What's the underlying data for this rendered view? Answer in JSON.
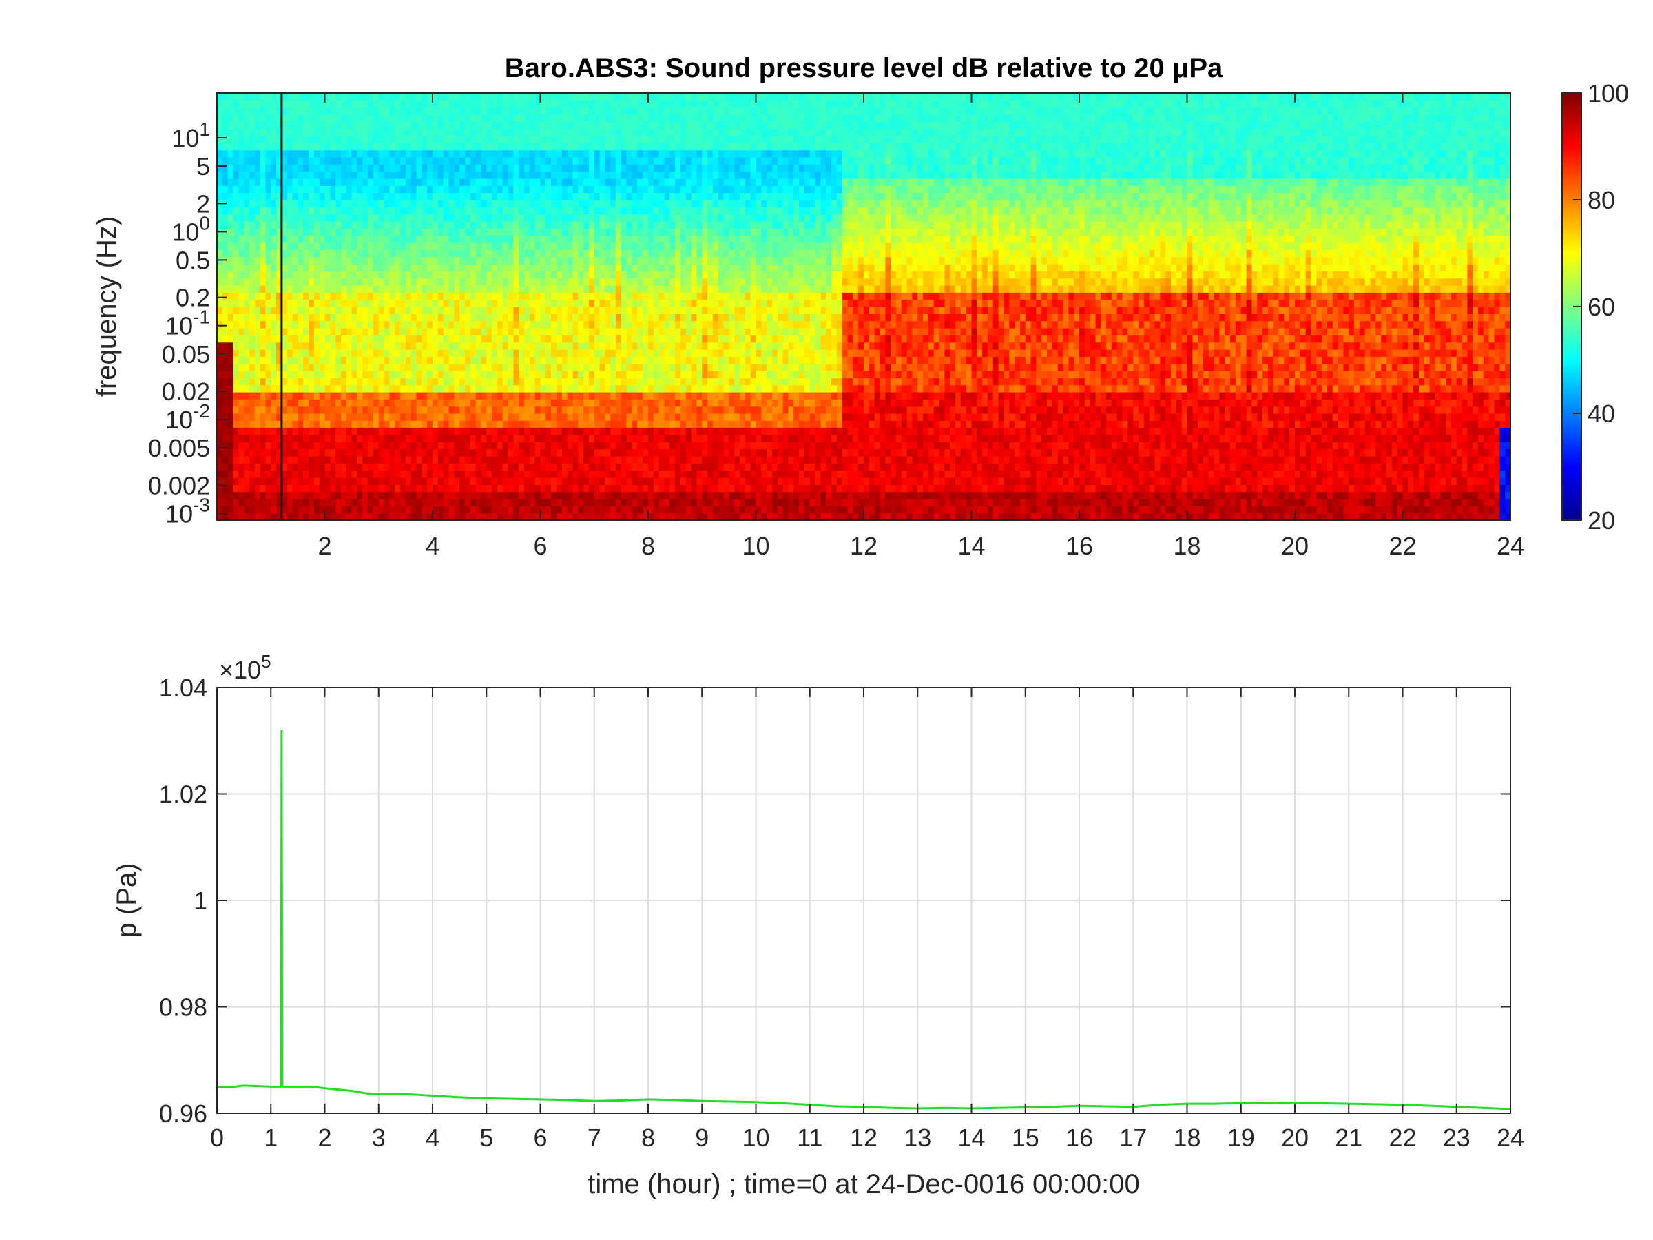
{
  "chart_data": [
    {
      "type": "heatmap",
      "title": "Baro.ABS3: Sound pressure level dB relative to 20 μPa",
      "xlabel": "",
      "ylabel": "frequency (Hz)",
      "xlim": [
        0,
        24
      ],
      "ylim": [
        0.00085,
        30
      ],
      "yscale": "log",
      "x_ticks": [
        2,
        4,
        6,
        8,
        10,
        12,
        14,
        16,
        18,
        20,
        22,
        24
      ],
      "x_tick_labels": [
        "2",
        "4",
        "6",
        "8",
        "10",
        "12",
        "14",
        "16",
        "18",
        "20",
        "22",
        "24"
      ],
      "y_ticks": [
        {
          "value": 0.001,
          "base": "10",
          "exp": "-3"
        },
        {
          "value": 0.002,
          "label": "0.002"
        },
        {
          "value": 0.005,
          "label": "0.005"
        },
        {
          "value": 0.01,
          "base": "10",
          "exp": "-2"
        },
        {
          "value": 0.02,
          "label": "0.02"
        },
        {
          "value": 0.05,
          "label": "0.05"
        },
        {
          "value": 0.1,
          "base": "10",
          "exp": "-1"
        },
        {
          "value": 0.2,
          "label": "0.2"
        },
        {
          "value": 0.5,
          "label": "0.5"
        },
        {
          "value": 1,
          "base": "10",
          "exp": "0"
        },
        {
          "value": 2,
          "label": "2"
        },
        {
          "value": 5,
          "label": "5"
        },
        {
          "value": 10,
          "base": "10",
          "exp": "1"
        }
      ],
      "colormap": "jet",
      "color_range": [
        20,
        100
      ],
      "colorbar_ticks": [
        "20",
        "40",
        "60",
        "80",
        "100"
      ],
      "colorbar_values": [
        20,
        40,
        60,
        80,
        100
      ],
      "spike_time_hours": 1.2,
      "levels_description": "high-frequency band ~50-55 dB (quieter ~45 dB during 0-11.5 h), mid band 0.02-0.2 Hz ~65-75 dB before 11.5 h and ~80-90 dB after, low band below 0.01 Hz ~85-95 dB throughout"
    },
    {
      "type": "line",
      "title": "",
      "xlabel": "time (hour) ; time=0 at 24-Dec-0016 00:00:00",
      "ylabel": "p (Pa)",
      "xlim": [
        0,
        24
      ],
      "ylim": [
        0.96,
        1.04
      ],
      "y_multiplier_base": "×10",
      "y_multiplier_exp": "5",
      "x_ticks": [
        0,
        1,
        2,
        3,
        4,
        5,
        6,
        7,
        8,
        9,
        10,
        11,
        12,
        13,
        14,
        15,
        16,
        17,
        18,
        19,
        20,
        21,
        22,
        23,
        24
      ],
      "x_tick_labels": [
        "0",
        "1",
        "2",
        "3",
        "4",
        "5",
        "6",
        "7",
        "8",
        "9",
        "10",
        "11",
        "12",
        "13",
        "14",
        "15",
        "16",
        "17",
        "18",
        "19",
        "20",
        "21",
        "22",
        "23",
        "24"
      ],
      "y_ticks": [
        0.96,
        0.98,
        1.0,
        1.02,
        1.04
      ],
      "y_tick_labels": [
        "0.96",
        "0.98",
        "1",
        "1.02",
        "1.04"
      ],
      "grid": true,
      "series": [
        {
          "color": "#22dd22",
          "x": [
            0,
            0.25,
            0.5,
            0.75,
            1.0,
            1.17,
            1.19,
            1.2,
            1.21,
            1.23,
            1.5,
            1.75,
            2,
            2.5,
            2.8,
            3,
            3.5,
            4,
            4.5,
            5,
            5.5,
            6,
            6.5,
            7,
            7.5,
            8,
            8.5,
            9,
            9.5,
            10,
            10.5,
            11,
            11.5,
            12,
            12.5,
            13,
            13.5,
            14,
            14.5,
            15,
            15.5,
            16,
            16.5,
            17,
            17.5,
            18,
            18.5,
            19,
            19.5,
            20,
            20.5,
            21,
            21.5,
            22,
            22.5,
            23,
            23.5,
            24
          ],
          "y": [
            0.965,
            0.9649,
            0.9652,
            0.9651,
            0.965,
            0.965,
            0.965,
            1.032,
            0.9651,
            0.965,
            0.965,
            0.965,
            0.9647,
            0.9642,
            0.9637,
            0.9636,
            0.9636,
            0.9633,
            0.963,
            0.9628,
            0.9627,
            0.9626,
            0.9625,
            0.9623,
            0.9624,
            0.9626,
            0.9625,
            0.9623,
            0.9622,
            0.9621,
            0.9619,
            0.9616,
            0.9613,
            0.9612,
            0.961,
            0.9609,
            0.961,
            0.9609,
            0.961,
            0.9611,
            0.9612,
            0.9614,
            0.9613,
            0.9612,
            0.9616,
            0.9618,
            0.9618,
            0.9619,
            0.962,
            0.9619,
            0.9619,
            0.9618,
            0.9617,
            0.9616,
            0.9614,
            0.9612,
            0.961,
            0.9608
          ]
        }
      ]
    }
  ]
}
